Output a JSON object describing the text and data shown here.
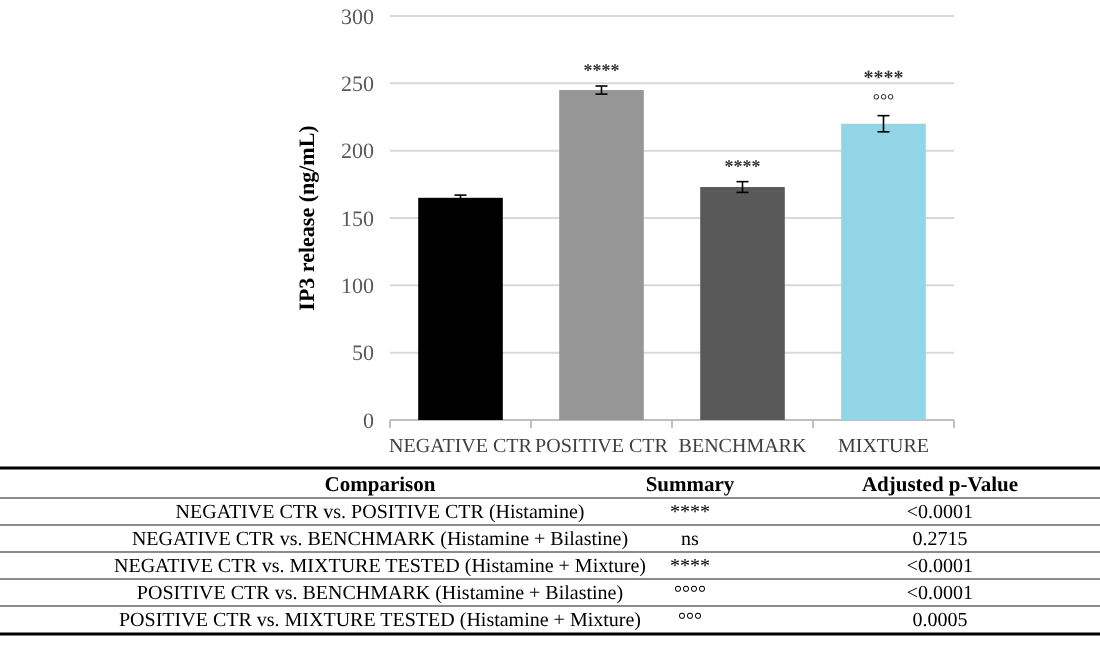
{
  "chart_data": {
    "type": "bar",
    "ylabel": "IP3 release (ng/mL)",
    "categories": [
      "NEGATIVE CTR",
      "POSITIVE CTR",
      "BENCHMARK",
      "MIXTURE"
    ],
    "values": [
      165,
      245,
      173,
      220
    ],
    "colors": [
      "#000000",
      "#969696",
      "#595959",
      "#92d5e6"
    ],
    "errors": [
      2,
      3,
      4,
      6
    ],
    "ylim": [
      0,
      300
    ],
    "yticks": [
      0,
      50,
      100,
      150,
      200,
      250,
      300
    ],
    "grid": "y",
    "annotations": [
      {
        "text": "****",
        "x": "POSITIVE CTR",
        "y": 248
      },
      {
        "text": "****",
        "x": "BENCHMARK",
        "y": 177
      },
      {
        "text": "°°°",
        "x": "MIXTURE",
        "y": 226
      },
      {
        "text": "****",
        "x": "MIXTURE",
        "y": 226
      },
      "Comparison",
      "Summary",
      "Adjusted p-Value",
      "NEGATIVE CTR vs. POSITIVE CTR (Histamine)",
      "****",
      "<0.0001",
      "NEGATIVE CTR vs. BENCHMARK (Histamine + Bilastine)",
      "ns",
      "0.2715",
      "NEGATIVE CTR vs. MIXTURE TESTED (Histamine + Mixture)",
      "****",
      "<0.0001",
      "POSITIVE CTR vs. BENCHMARK (Histamine + Bilastine)",
      "°°°°",
      "<0.0001",
      "POSITIVE CTR vs. MIXTURE TESTED (Histamine + Mixture)",
      "°°°",
      "0.0005"
    ]
  }
}
